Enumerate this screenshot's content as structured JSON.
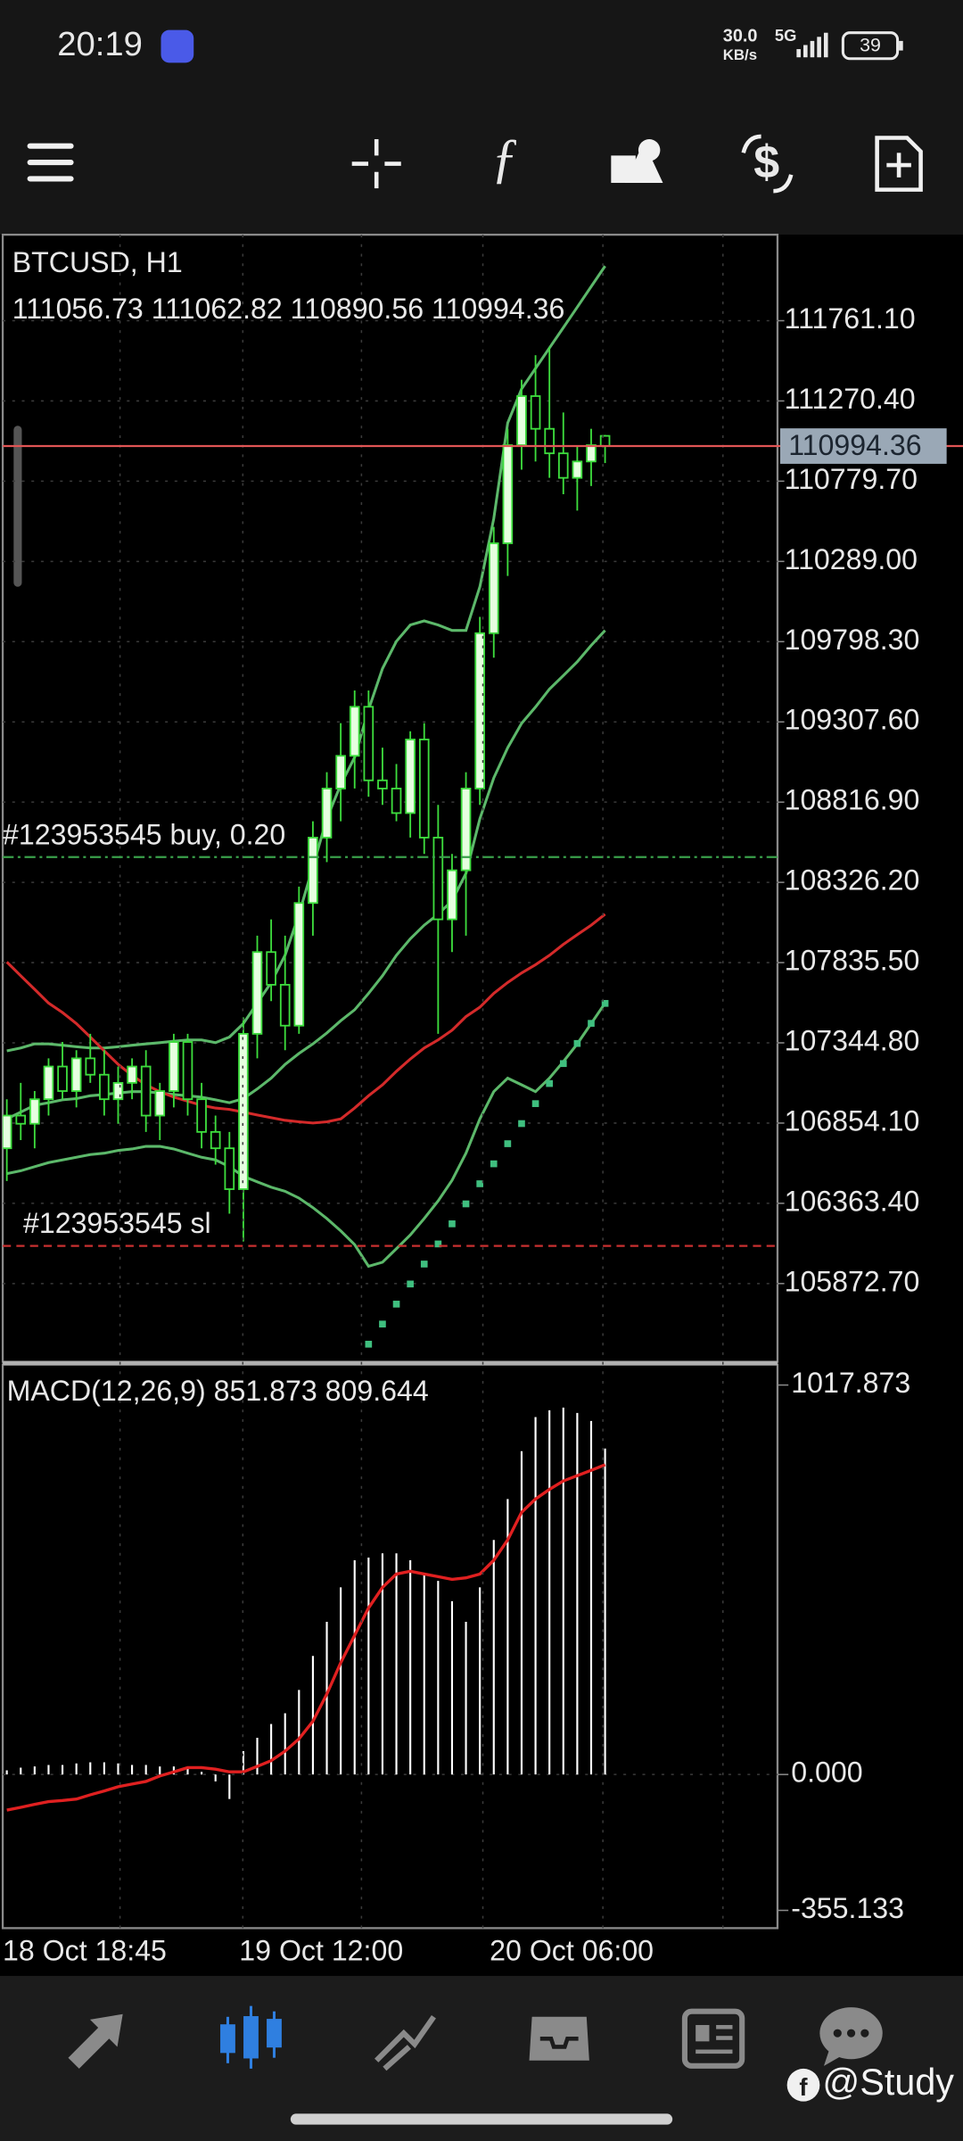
{
  "status_bar": {
    "time": "20:19",
    "speed": "30.0",
    "speed_unit": "KB/s",
    "network": "5G",
    "battery": "39"
  },
  "watermark": "@Study",
  "chart_data": [
    {
      "type": "candlestick",
      "title": "BTCUSD, H1",
      "categories": [
        "18 Oct 18:45",
        null,
        null,
        null,
        null,
        null,
        null,
        null,
        null,
        null,
        null,
        null,
        null,
        null,
        null,
        null,
        null,
        "19 Oct 12:00",
        null,
        null,
        null,
        null,
        null,
        null,
        null,
        null,
        null,
        null,
        null,
        null,
        null,
        null,
        null,
        null,
        null,
        "20 Oct 06:00",
        null,
        null,
        null,
        null,
        null,
        null,
        null,
        null
      ],
      "open": [
        106700,
        106900,
        106850,
        107000,
        107200,
        107050,
        107250,
        107150,
        107000,
        107100,
        107200,
        106900,
        107050,
        107350,
        107000,
        106800,
        106700,
        106450,
        107400,
        107900,
        107700,
        107450,
        108200,
        108600,
        108900,
        109100,
        109400,
        108950,
        108900,
        108750,
        109200,
        108600,
        108100,
        108400,
        108900,
        109850,
        110400,
        111000,
        111300,
        111100,
        110950,
        110800,
        110900,
        111056.73
      ],
      "high": [
        107000,
        107100,
        107050,
        107250,
        107350,
        107300,
        107400,
        107300,
        107200,
        107250,
        107300,
        107100,
        107400,
        107400,
        107100,
        106900,
        106800,
        107500,
        108000,
        108100,
        108000,
        108300,
        108700,
        109000,
        109300,
        109500,
        109500,
        109150,
        109050,
        109250,
        109300,
        108800,
        108500,
        109000,
        109950,
        110500,
        111100,
        111400,
        111550,
        111600,
        111200,
        111000,
        111100,
        111062.82
      ],
      "low": [
        106500,
        106750,
        106700,
        106900,
        107000,
        106950,
        107100,
        106900,
        106850,
        107000,
        106800,
        106750,
        106950,
        106900,
        106700,
        106600,
        106300,
        106130,
        107250,
        107600,
        107300,
        107400,
        108000,
        108450,
        108700,
        108900,
        108850,
        108800,
        108700,
        108600,
        108500,
        107400,
        107900,
        108000,
        108800,
        109700,
        110200,
        110850,
        110900,
        110800,
        110700,
        110600,
        110750,
        110890.56
      ],
      "close": [
        106900,
        106850,
        107000,
        107200,
        107050,
        107250,
        107150,
        107000,
        107100,
        107200,
        106900,
        107050,
        107350,
        107000,
        106800,
        106700,
        106450,
        107400,
        107900,
        107700,
        107450,
        108200,
        108600,
        108900,
        109100,
        109400,
        108950,
        108900,
        108750,
        109200,
        108600,
        108100,
        108400,
        108900,
        109850,
        110400,
        111000,
        111300,
        111100,
        110950,
        110800,
        110900,
        111000,
        110994.36
      ],
      "up_color": "#e6ffe0",
      "down_color": "#000000",
      "wick_color": "#3ddc3d",
      "series": [
        {
          "color": "#5cb86a",
          "values": [
            107296,
            107313,
            107338,
            107338,
            107330,
            107321,
            107313,
            107313,
            107321,
            107330,
            107338,
            107346,
            107355,
            107363,
            107363,
            107346,
            107380,
            107463,
            107588,
            107714,
            107881,
            108131,
            108423,
            108715,
            108924,
            109091,
            109383,
            109633,
            109800,
            109900,
            109925,
            109900,
            109867,
            109867,
            110134,
            110551,
            111135,
            111344,
            111469,
            111594,
            111719,
            111844,
            111970,
            112095
          ]
        },
        {
          "color": "#5cb86a",
          "values": [
            106879,
            106921,
            106963,
            106979,
            106996,
            107004,
            107021,
            107029,
            107038,
            107046,
            107046,
            107038,
            107029,
            107021,
            107013,
            106996,
            106979,
            107004,
            107063,
            107129,
            107213,
            107280,
            107338,
            107405,
            107480,
            107547,
            107647,
            107755,
            107880,
            107981,
            108064,
            108131,
            108214,
            108381,
            108715,
            108965,
            109149,
            109299,
            109399,
            109508,
            109591,
            109675,
            109775,
            109867
          ]
        },
        {
          "color": "#5cb86a",
          "values": [
            106545,
            106562,
            106587,
            106612,
            106629,
            106645,
            106662,
            106670,
            106687,
            106696,
            106712,
            106712,
            106696,
            106670,
            106645,
            106629,
            106587,
            106529,
            106495,
            106462,
            106437,
            106395,
            106337,
            106270,
            106195,
            106111,
            105978,
            106003,
            106086,
            106170,
            106270,
            106378,
            106504,
            106670,
            106879,
            107046,
            107129,
            107088,
            107046,
            107129,
            107230,
            107338,
            107463,
            107588
          ]
        },
        {
          "color": "#d42a2a",
          "values": [
            107839,
            107755,
            107672,
            107588,
            107530,
            107463,
            107380,
            107296,
            107213,
            107146,
            107088,
            107046,
            107013,
            106988,
            106963,
            106946,
            106938,
            106921,
            106904,
            106887,
            106871,
            106862,
            106854,
            106862,
            106879,
            106946,
            107021,
            107088,
            107171,
            107246,
            107313,
            107363,
            107422,
            107505,
            107563,
            107647,
            107714,
            107772,
            107822,
            107880,
            107947,
            108006,
            108064,
            108131
          ]
        }
      ],
      "sar": {
        "color": "#3fbf7f",
        "values": [
          null,
          null,
          null,
          null,
          null,
          null,
          null,
          null,
          null,
          null,
          null,
          null,
          null,
          null,
          null,
          null,
          null,
          null,
          null,
          null,
          null,
          null,
          null,
          null,
          null,
          null,
          105502,
          105625,
          105747,
          105870,
          105992,
          106115,
          106238,
          106360,
          106483,
          106605,
          106728,
          106851,
          106973,
          107096,
          107218,
          107341,
          107464,
          107586
        ]
      },
      "orders": [
        {
          "label": "#123953545 buy, 0.20",
          "value": 108481,
          "color": "#3aa04a"
        },
        {
          "label": "#123953545 sl",
          "value": 106103,
          "color": "#c83030"
        }
      ],
      "bid_color": "#e05555",
      "bid_label_color": "#9aa8b6",
      "ylim": [
        105394,
        112287
      ],
      "yticks": [
        {
          "value": 111761.1,
          "label": "111761.10"
        },
        {
          "value": 111270.4,
          "label": "111270.40"
        },
        {
          "value": 110779.7,
          "label": "110779.70"
        },
        {
          "value": 110289,
          "label": "110289.00"
        },
        {
          "value": 109798.3,
          "label": "109798.30"
        },
        {
          "value": 109307.6,
          "label": "109307.60"
        },
        {
          "value": 108816.9,
          "label": "108816.90"
        },
        {
          "value": 108326.2,
          "label": "108326.20"
        },
        {
          "value": 107835.5,
          "label": "107835.50"
        },
        {
          "value": 107344.8,
          "label": "107344.80"
        },
        {
          "value": 106854.1,
          "label": "106854.10"
        },
        {
          "value": 106363.4,
          "label": "106363.40"
        },
        {
          "value": 105872.7,
          "label": "105872.70"
        }
      ],
      "grid": true
    },
    {
      "type": "macd",
      "title": "MACD(12,26,9)",
      "color": "#ffffff",
      "values": [
        11,
        18,
        21,
        25,
        25,
        29,
        32,
        32,
        29,
        25,
        25,
        21,
        21,
        18,
        7,
        -18,
        -64,
        61,
        96,
        132,
        160,
        221,
        310,
        399,
        489,
        560,
        567,
        578,
        578,
        560,
        524,
        506,
        453,
        399,
        489,
        613,
        720,
        845,
        934,
        952,
        959,
        945,
        924,
        851.873
      ],
      "signal": {
        "color": "#e02020",
        "values": [
          -93,
          -86,
          -78,
          -71,
          -68,
          -64,
          -53,
          -43,
          -32,
          -25,
          -18,
          -4,
          7,
          18,
          18,
          14,
          7,
          7,
          21,
          36,
          61,
          93,
          139,
          210,
          292,
          364,
          435,
          489,
          524,
          531,
          524,
          517,
          510,
          514,
          524,
          560,
          613,
          685,
          720,
          745,
          767,
          781,
          795,
          809.644
        ]
      },
      "ylim": [
        -355.133,
        1017.873
      ],
      "yticks": [
        1017.873,
        {
          "value": 0,
          "label": "0.000"
        },
        -355.133
      ]
    }
  ]
}
